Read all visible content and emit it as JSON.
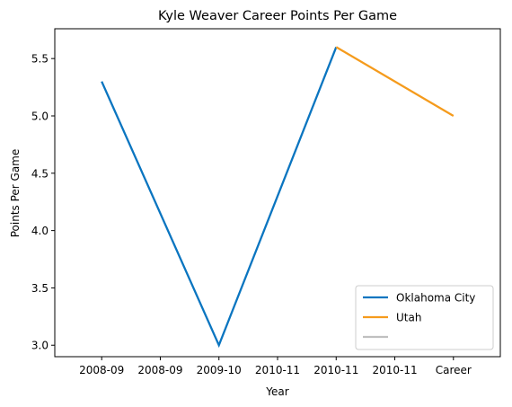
{
  "chart_data": {
    "type": "line",
    "title": "Kyle Weaver Career Points Per Game",
    "xlabel": "Year",
    "ylabel": "Points Per Game",
    "categories": [
      "2008-09",
      "2008-09",
      "2009-10",
      "2010-11",
      "2010-11",
      "2010-11",
      "Career"
    ],
    "ylim": [
      2.9,
      5.76
    ],
    "yticks": [
      "3.0",
      "3.5",
      "4.0",
      "4.5",
      "5.0",
      "5.5"
    ],
    "series": [
      {
        "name": "Oklahoma City",
        "color": "#0a75c0",
        "points": [
          [
            0,
            5.3
          ],
          [
            2,
            3.0
          ],
          [
            4,
            5.6
          ]
        ]
      },
      {
        "name": "Utah",
        "color": "#f59b1c",
        "points": [
          [
            4,
            5.6
          ],
          [
            6,
            5.0
          ]
        ]
      }
    ],
    "legend": {
      "placement": "lower-right",
      "entries": [
        {
          "label": "Oklahoma City",
          "color": "#0a75c0"
        },
        {
          "label": "Utah",
          "color": "#f59b1c"
        },
        {
          "label": "",
          "color": "#c0c0c0"
        }
      ]
    },
    "grid": false
  }
}
